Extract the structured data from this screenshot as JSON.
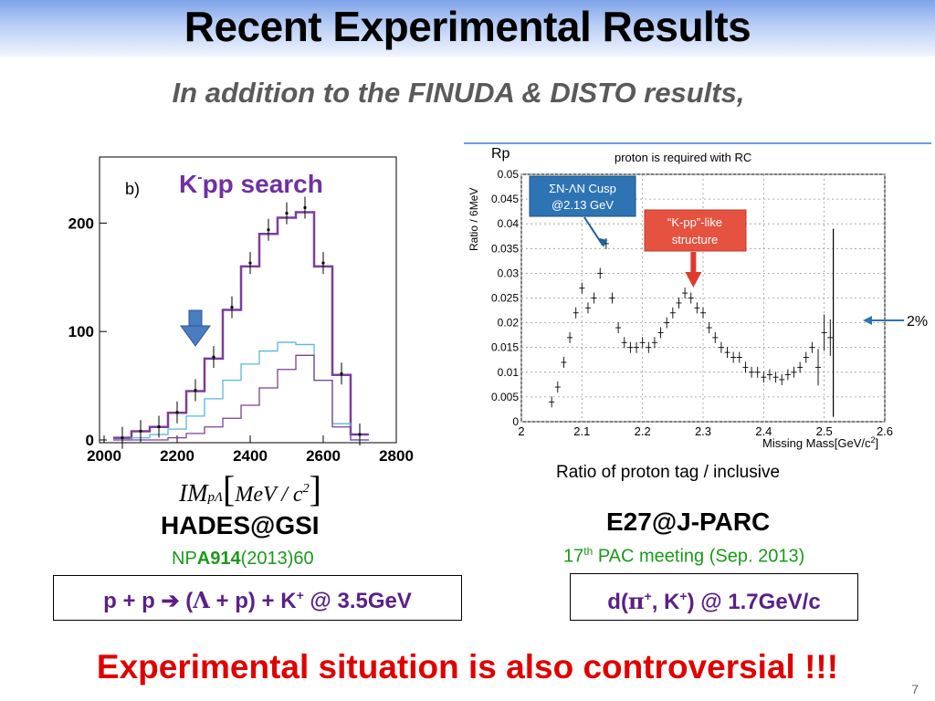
{
  "slide": {
    "title": "Recent Experimental Results",
    "subtitle": "In addition to the FINUDA & DISTO results,",
    "conclusion": "Experimental situation is also controversial !!!",
    "page_number": "7"
  },
  "left": {
    "experiment": "HADES@GSI",
    "ref_prefix": "NP",
    "ref_volume": "A914",
    "ref_suffix": "(2013)60",
    "reaction": {
      "p1": "p + p ",
      "arrow": "➔",
      "p2": " (",
      "lambda": "Λ",
      "p3": " + p) + K",
      "sup": "+",
      "p4": " @ 3.5GeV"
    }
  },
  "right": {
    "caption": "Ratio of proton tag / inclusive",
    "experiment": "E27@J-PARC",
    "meeting_pre": "17",
    "meeting_sup": "th",
    "meeting_post": " PAC meeting (Sep. 2013)",
    "reaction": {
      "p1": "d(",
      "pi": "π",
      "sup1": "+",
      "p2": ", K",
      "sup2": "+",
      "p3": ") @ 1.7GeV/c"
    }
  },
  "colors": {
    "accent_purple": "#7030a0",
    "hist_purple": "#7b3f98",
    "hist_cyan": "#5ab6e0",
    "red": "#e00000",
    "green": "#1a9a1a",
    "callout_blue": "#2e74b5",
    "callout_red": "#e55340"
  },
  "chart_data": [
    {
      "type": "line",
      "panel_label": "b)",
      "annotation": "K-pp search",
      "xlim": [
        2000,
        2800
      ],
      "ylim": [
        0,
        250
      ],
      "x_ticks": [
        "2000",
        "2200",
        "2400",
        "2600",
        "2800"
      ],
      "y_ticks": [
        "0",
        "100",
        "200"
      ],
      "xlabel": "IM pΛ [MeV/c²]",
      "x": [
        2050,
        2100,
        2150,
        2200,
        2250,
        2300,
        2350,
        2400,
        2450,
        2500,
        2550,
        2600,
        2650,
        2700
      ],
      "series": [
        {
          "values": [
            2,
            8,
            12,
            25,
            45,
            75,
            120,
            160,
            190,
            205,
            210,
            160,
            60,
            5
          ]
        },
        {
          "values": [
            0,
            2,
            5,
            10,
            22,
            38,
            55,
            70,
            82,
            90,
            88,
            55,
            15,
            0
          ]
        },
        {
          "values": [
            0,
            0,
            0,
            2,
            6,
            12,
            20,
            32,
            48,
            65,
            78,
            55,
            12,
            0
          ]
        }
      ],
      "arrow_at_x": 2180,
      "arrow_color": "#4a7cc0"
    },
    {
      "type": "scatter",
      "title": "proton is required with RC",
      "ylabel_top": "Rp",
      "ylabel": "Ratio / 6MeV",
      "xlabel": "Missing Mass[GeV/c²]",
      "xlim": [
        2.0,
        2.6
      ],
      "ylim": [
        0,
        0.05
      ],
      "x_ticks": [
        "2",
        "2.1",
        "2.2",
        "2.3",
        "2.4",
        "2.5",
        "2.6"
      ],
      "y_ticks": [
        "0",
        "0.005",
        "0.01",
        "0.015",
        "0.02",
        "0.025",
        "0.03",
        "0.035",
        "0.04",
        "0.045",
        "0.05"
      ],
      "x": [
        2.05,
        2.06,
        2.07,
        2.08,
        2.09,
        2.1,
        2.11,
        2.12,
        2.13,
        2.14,
        2.15,
        2.16,
        2.17,
        2.18,
        2.19,
        2.2,
        2.21,
        2.22,
        2.23,
        2.24,
        2.25,
        2.26,
        2.27,
        2.28,
        2.29,
        2.3,
        2.31,
        2.32,
        2.33,
        2.34,
        2.35,
        2.36,
        2.37,
        2.38,
        2.39,
        2.4,
        2.41,
        2.42,
        2.43,
        2.44,
        2.45,
        2.46,
        2.47,
        2.48,
        2.49,
        2.5,
        2.51
      ],
      "y": [
        0.004,
        0.007,
        0.012,
        0.017,
        0.022,
        0.027,
        0.023,
        0.025,
        0.03,
        0.036,
        0.025,
        0.019,
        0.016,
        0.015,
        0.015,
        0.016,
        0.015,
        0.016,
        0.018,
        0.02,
        0.022,
        0.024,
        0.026,
        0.025,
        0.023,
        0.022,
        0.019,
        0.017,
        0.015,
        0.014,
        0.013,
        0.013,
        0.011,
        0.01,
        0.01,
        0.009,
        0.0095,
        0.009,
        0.0085,
        0.0095,
        0.01,
        0.011,
        0.013,
        0.015,
        0.011,
        0.018,
        0.017
      ],
      "callouts": [
        {
          "text_line1": "ΣN-ΛN Cusp",
          "text_line2": "@2.13 GeV",
          "points_to_x": 2.13
        },
        {
          "text_line1": "“K-pp”-like",
          "text_line2": "structure",
          "points_to_x": 2.29
        }
      ],
      "side_marker": "2%"
    }
  ]
}
